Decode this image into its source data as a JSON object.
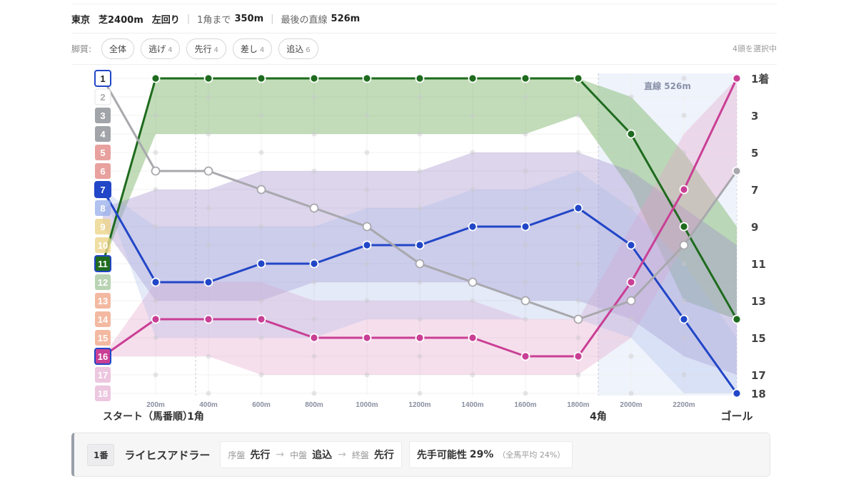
{
  "header": {
    "venue": "東京",
    "course": "芝2400m",
    "direction": "左回り",
    "corner_label": "1角まで",
    "corner_value": "350m",
    "straight_label": "最後の直線",
    "straight_value": "526m"
  },
  "filters": {
    "label": "脚質:",
    "pills": [
      {
        "label": "全体",
        "count": ""
      },
      {
        "label": "逃げ",
        "count": "4"
      },
      {
        "label": "先行",
        "count": "4"
      },
      {
        "label": "差し",
        "count": "4"
      },
      {
        "label": "追込",
        "count": "6"
      }
    ],
    "selected_text": "4頭を選択中"
  },
  "chart_data": {
    "type": "line",
    "x": [
      "スタート",
      "200m",
      "400m",
      "600m",
      "800m",
      "1000m",
      "1200m",
      "1400m",
      "1600m",
      "1800m",
      "2000m",
      "2200m",
      "ゴール"
    ],
    "x_tick_labels": [
      "200m",
      "400m",
      "600m",
      "800m",
      "1000m",
      "1200m",
      "1400m",
      "1600m",
      "1800m",
      "2000m",
      "2200m"
    ],
    "start_label": "スタート（馬番順）",
    "corner1_label": "1角",
    "corner4_label": "4角",
    "goal_label": "ゴール",
    "straight_label": "直線 526m",
    "y_reversed": true,
    "ylim": [
      1,
      18
    ],
    "right_labels": [
      "1着",
      "3",
      "5",
      "7",
      "9",
      "11",
      "13",
      "15",
      "17",
      "18"
    ],
    "horse_numbers": [
      "1",
      "2",
      "3",
      "4",
      "5",
      "6",
      "7",
      "8",
      "9",
      "10",
      "11",
      "12",
      "13",
      "14",
      "15",
      "16",
      "17",
      "18"
    ],
    "badge_colors": [
      "#ffffff",
      "#ffffff",
      "#8a8d92",
      "#8a8d92",
      "#e28a86",
      "#e28a86",
      "#2146c7",
      "#9db1ec",
      "#ecd58a",
      "#ecd58a",
      "#1e6b1e",
      "#a8c8a0",
      "#f0a88a",
      "#f0a88a",
      "#f0a88a",
      "#c93f95",
      "#e8b8d8",
      "#e8b8d8"
    ],
    "selected_horses": [
      "1",
      "7",
      "11",
      "16"
    ],
    "series": [
      {
        "horse": "11",
        "color": "#1e6b1e",
        "values": [
          11,
          1,
          1,
          1,
          1,
          1,
          1,
          1,
          1,
          1,
          4,
          9,
          14
        ]
      },
      {
        "horse": "7",
        "color": "#2146c7",
        "values": [
          7,
          12,
          12,
          11,
          11,
          10,
          10,
          9,
          9,
          8,
          10,
          14,
          18
        ]
      },
      {
        "horse": "16",
        "color": "#c93f95",
        "values": [
          16,
          14,
          14,
          14,
          15,
          15,
          15,
          15,
          16,
          16,
          12,
          7,
          1
        ]
      },
      {
        "horse": "1",
        "color": "#a8a8ad",
        "values": [
          1,
          6,
          6,
          7,
          8,
          9,
          11,
          12,
          13,
          14,
          13,
          10,
          6
        ]
      }
    ],
    "grid": true
  },
  "info": {
    "number": "1番",
    "name": "ライヒスアドラー",
    "early_label": "序盤",
    "early_value": "先行",
    "mid_label": "中盤",
    "mid_value": "追込",
    "late_label": "終盤",
    "late_value": "先行",
    "prob_label": "先手可能性",
    "prob_value": "29%",
    "avg_text": "（全馬平均 24%）"
  }
}
